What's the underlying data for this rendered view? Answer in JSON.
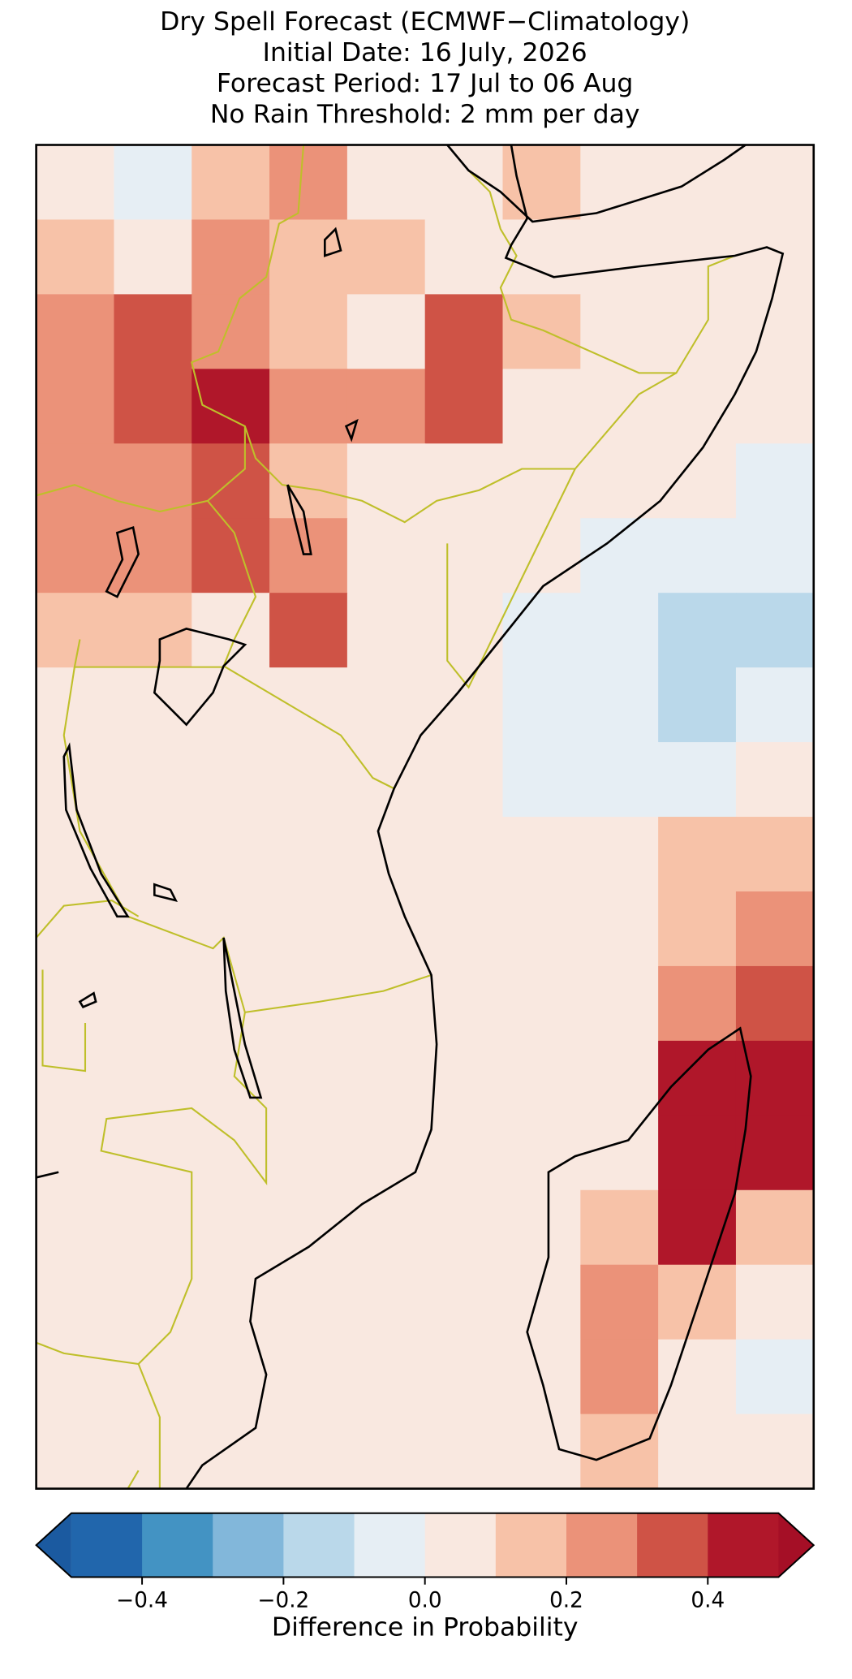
{
  "title": {
    "lines": [
      "Dry Spell Forecast (ECMWF−Climatology)",
      "Initial Date: 16 July, 2026",
      "Forecast Period: 17 Jul to 06 Aug",
      "No Rain Threshold: 2 mm per day"
    ]
  },
  "map": {
    "cells": [
      [
        0.05,
        -0.05,
        0.15,
        0.25,
        0.05,
        0.05,
        0.15,
        0.05,
        0.05,
        0.05
      ],
      [
        0.15,
        0.05,
        0.25,
        0.15,
        0.15,
        0.05,
        0.05,
        0.05,
        0.05,
        0.05
      ],
      [
        0.25,
        0.35,
        0.25,
        0.15,
        0.05,
        0.35,
        0.15,
        0.05,
        0.05,
        0.05
      ],
      [
        0.25,
        0.35,
        0.45,
        0.25,
        0.25,
        0.35,
        0.05,
        0.05,
        0.05,
        0.05
      ],
      [
        0.25,
        0.25,
        0.35,
        0.15,
        0.05,
        0.05,
        0.05,
        0.05,
        0.05,
        -0.05
      ],
      [
        0.25,
        0.25,
        0.35,
        0.25,
        0.05,
        0.05,
        0.05,
        -0.05,
        -0.05,
        -0.05
      ],
      [
        0.15,
        0.15,
        0.05,
        0.35,
        0.05,
        0.05,
        -0.05,
        -0.05,
        -0.15,
        -0.15
      ],
      [
        0.05,
        0.05,
        0.05,
        0.05,
        0.05,
        0.05,
        -0.05,
        -0.05,
        -0.15,
        -0.05
      ],
      [
        0.05,
        0.05,
        0.05,
        0.05,
        0.05,
        0.05,
        -0.05,
        -0.05,
        -0.05,
        0.05
      ],
      [
        0.05,
        0.05,
        0.05,
        0.05,
        0.05,
        0.05,
        0.05,
        0.05,
        0.15,
        0.15
      ],
      [
        0.05,
        0.05,
        0.05,
        0.05,
        0.05,
        0.05,
        0.05,
        0.05,
        0.15,
        0.25
      ],
      [
        0.05,
        0.05,
        0.05,
        0.05,
        0.05,
        0.05,
        0.05,
        0.05,
        0.25,
        0.35
      ],
      [
        0.05,
        0.05,
        0.05,
        0.05,
        0.05,
        0.05,
        0.05,
        0.05,
        0.45,
        0.45
      ],
      [
        0.05,
        0.05,
        0.05,
        0.05,
        0.05,
        0.05,
        0.05,
        0.05,
        0.45,
        0.45
      ],
      [
        0.05,
        0.05,
        0.05,
        0.05,
        0.05,
        0.05,
        0.05,
        0.15,
        0.45,
        0.15
      ],
      [
        0.05,
        0.05,
        0.05,
        0.05,
        0.05,
        0.05,
        0.05,
        0.25,
        0.15,
        0.05
      ],
      [
        0.05,
        0.05,
        0.05,
        0.05,
        0.05,
        0.05,
        0.05,
        0.25,
        0.05,
        -0.05
      ],
      [
        0.05,
        0.05,
        0.05,
        0.05,
        0.05,
        0.05,
        0.05,
        0.15,
        0.05,
        0.05
      ]
    ]
  },
  "colorbar": {
    "levels": [
      -0.5,
      -0.4,
      -0.3,
      -0.2,
      -0.1,
      0,
      0.1,
      0.2,
      0.3,
      0.4,
      0.5
    ],
    "colors": [
      "#2166ac",
      "#4393c3",
      "#82b7da",
      "#bad8ea",
      "#e6eef4",
      "#f9e8e0",
      "#f7c2a8",
      "#eb9279",
      "#cf5346",
      "#b0172a"
    ],
    "under_color": "#1b5aa0",
    "over_color": "#a50f26",
    "ticks": [
      {
        "value": -0.4,
        "label": "−0.4"
      },
      {
        "value": -0.2,
        "label": "−0.2"
      },
      {
        "value": 0,
        "label": "0.0"
      },
      {
        "value": 0.2,
        "label": "0.2"
      },
      {
        "value": 0.4,
        "label": "0.4"
      }
    ],
    "label": "Difference in Probability"
  }
}
